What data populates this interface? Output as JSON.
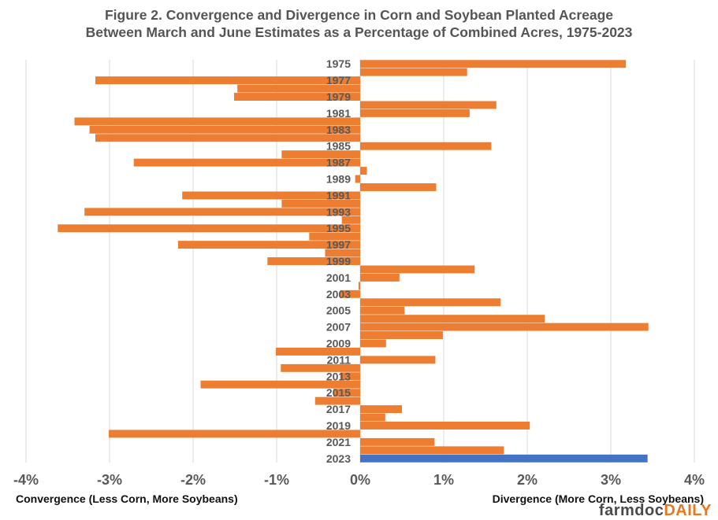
{
  "title": {
    "line1": "Figure 2. Convergence and Divergence in Corn and Soybean Planted Acreage",
    "line2": "Between March and June Estimates as a Percentage of Combined Acres, 1975-2023"
  },
  "notes": {
    "left": "Convergence (Less Corn, More Soybeans)",
    "right": "Divergence (More Corn, Less Soybeans)"
  },
  "logo": {
    "part1": "farmdoc",
    "part2": "DAILY"
  },
  "colors": {
    "bar": "#ED7D31",
    "highlight": "#4472C4",
    "grid": "#D9D9D9",
    "text": "#595959"
  },
  "chart_data": {
    "type": "bar",
    "orientation": "horizontal",
    "title": "Figure 2. Convergence and Divergence in Corn and Soybean Planted Acreage Between March and June Estimates as a Percentage of Combined Acres, 1975-2023",
    "xlim": [
      -4,
      4
    ],
    "x_ticks": [
      "-4%",
      "-3%",
      "-2%",
      "-1%",
      "0%",
      "1%",
      "2%",
      "3%",
      "4%"
    ],
    "x_tick_values": [
      -4,
      -3,
      -2,
      -1,
      0,
      1,
      2,
      3,
      4
    ],
    "xlabel_left": "Convergence (Less Corn, More Soybeans)",
    "xlabel_right": "Divergence (More Corn, Less Soybeans)",
    "grid": true,
    "highlight_category": "2023",
    "categories": [
      "1975",
      "1976",
      "1977",
      "1978",
      "1979",
      "1980",
      "1981",
      "1982",
      "1983",
      "1984",
      "1985",
      "1986",
      "1987",
      "1988",
      "1989",
      "1990",
      "1991",
      "1992",
      "1993",
      "1994",
      "1995",
      "1996",
      "1997",
      "1998",
      "1999",
      "2000",
      "2001",
      "2002",
      "2003",
      "2004",
      "2005",
      "2006",
      "2007",
      "2008",
      "2009",
      "2010",
      "2011",
      "2012",
      "2013",
      "2014",
      "2015",
      "2016",
      "2017",
      "2018",
      "2019",
      "2020",
      "2021",
      "2022",
      "2023"
    ],
    "category_labels_shown": [
      "1975",
      "1977",
      "1979",
      "1981",
      "1983",
      "1985",
      "1987",
      "1989",
      "1991",
      "1993",
      "1995",
      "1997",
      "1999",
      "2001",
      "2003",
      "2005",
      "2007",
      "2009",
      "2011",
      "2013",
      "2015",
      "2017",
      "2019",
      "2021",
      "2023"
    ],
    "values": [
      3.18,
      1.28,
      -3.17,
      -1.47,
      -1.51,
      1.63,
      1.31,
      -3.42,
      -3.24,
      -3.17,
      1.57,
      -0.94,
      -2.71,
      0.08,
      -0.06,
      0.91,
      -2.13,
      -0.94,
      -3.3,
      -0.22,
      -3.62,
      -0.61,
      -2.18,
      -0.42,
      -1.11,
      1.37,
      0.47,
      -0.02,
      -0.24,
      1.68,
      0.53,
      2.21,
      3.45,
      0.99,
      0.31,
      -1.01,
      0.9,
      -0.95,
      -0.24,
      -1.91,
      -0.32,
      -0.54,
      0.5,
      0.3,
      2.03,
      -3.01,
      0.89,
      1.72,
      3.44
    ]
  }
}
